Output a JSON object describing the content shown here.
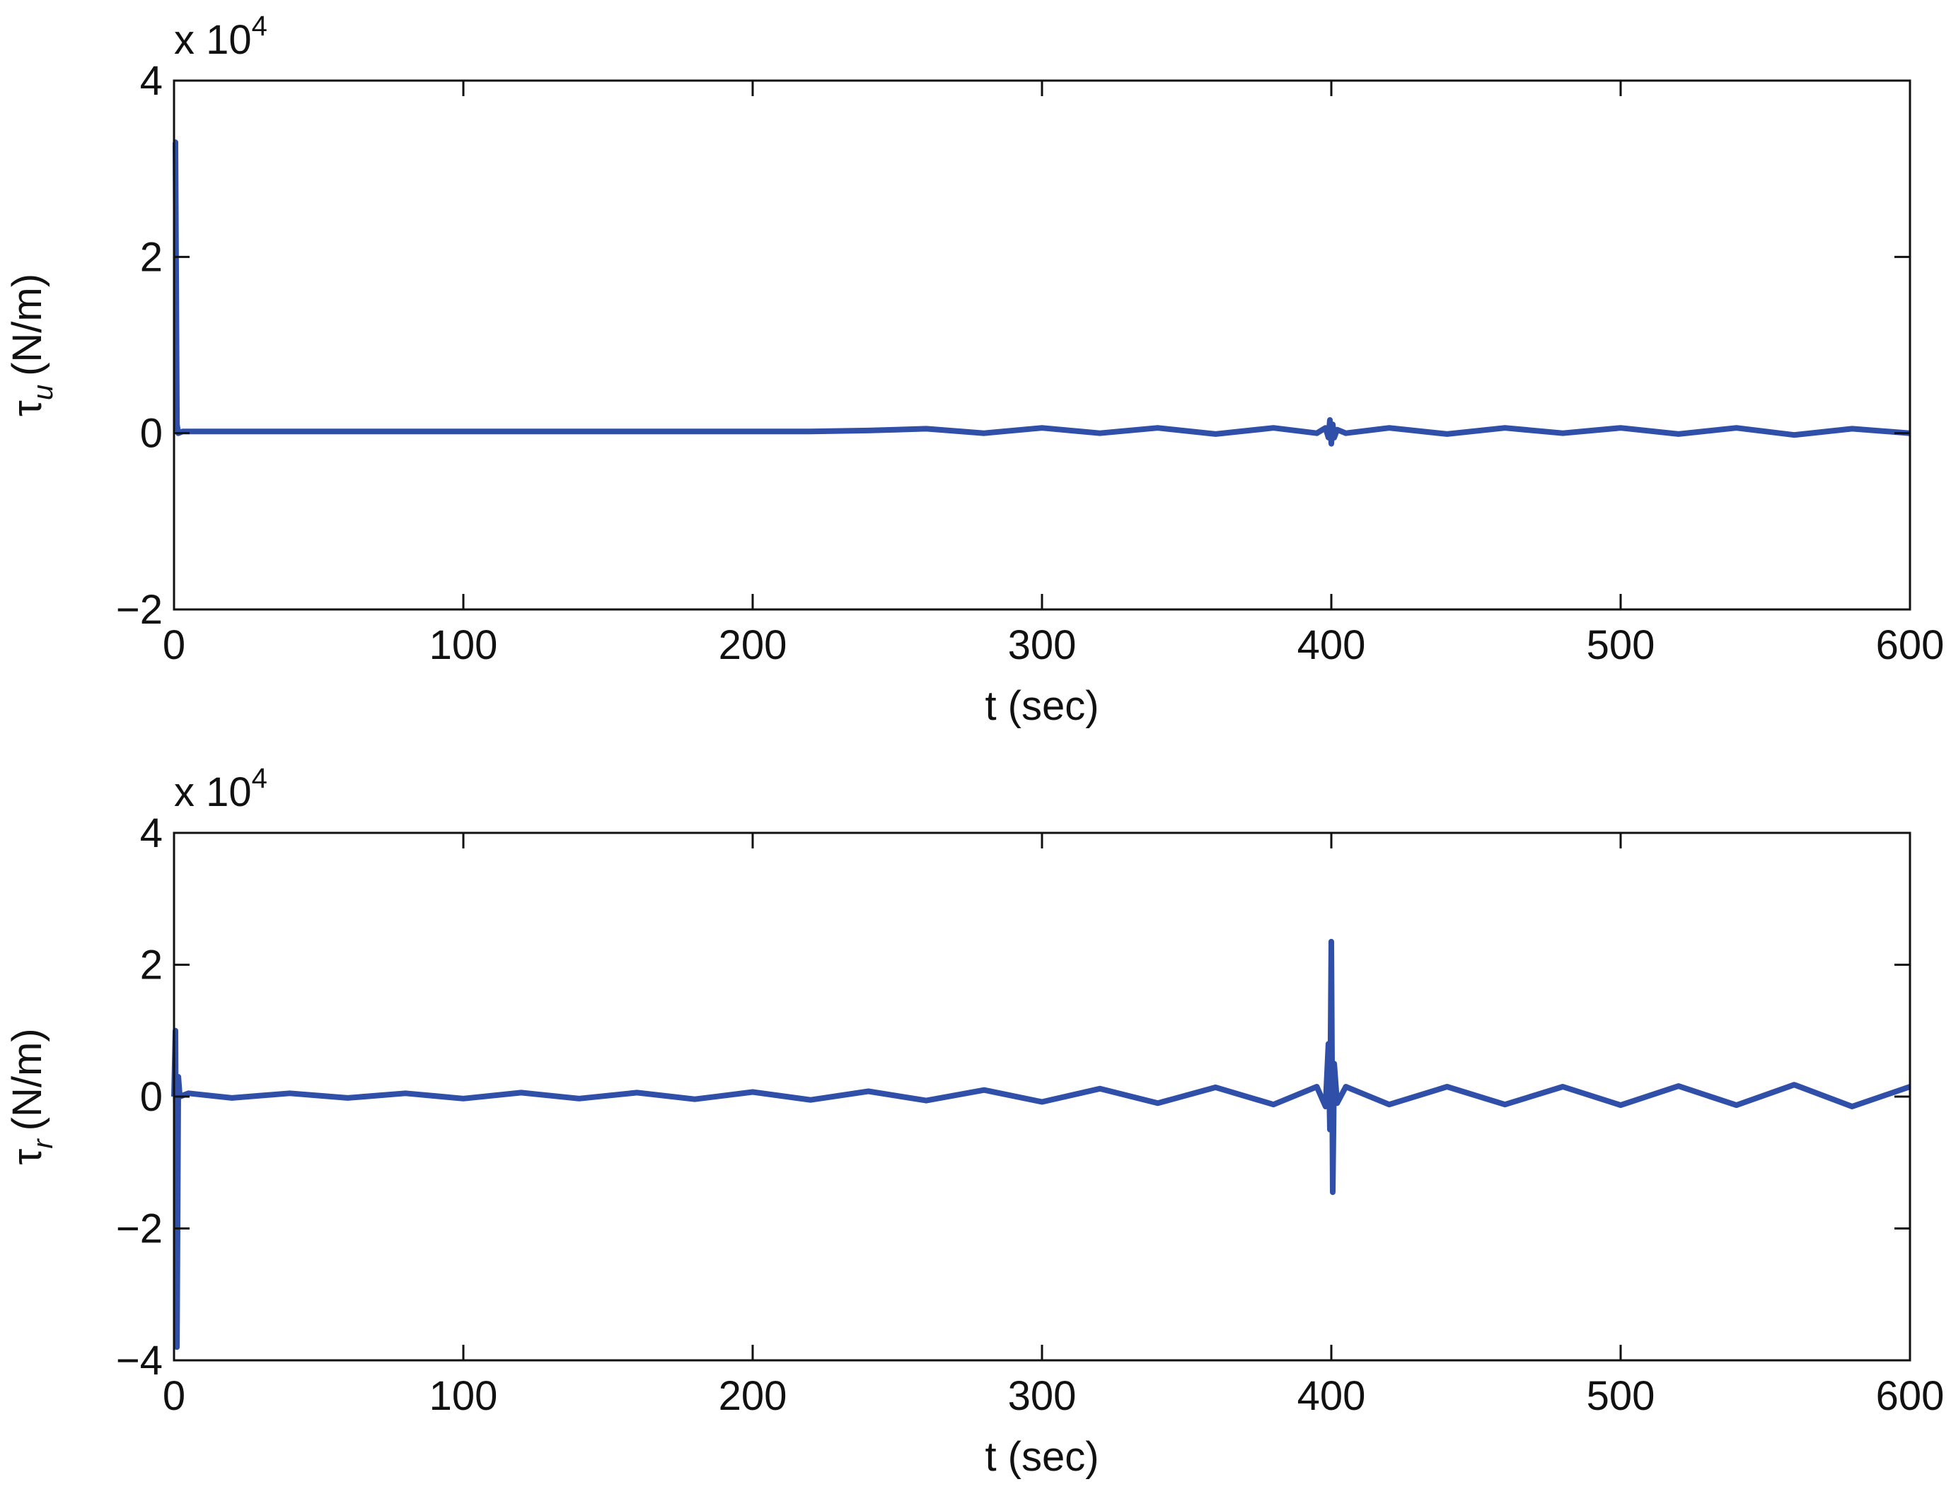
{
  "chart_data": [
    {
      "type": "line",
      "xlabel": "t (sec)",
      "ylabel": {
        "symbol": "τ",
        "subscript": "u",
        "unit": "(N/m)"
      },
      "y_multiplier": {
        "base": "x 10",
        "exponent": "4"
      },
      "x": [
        0,
        0.5,
        1,
        1.5,
        3,
        20,
        40,
        60,
        80,
        100,
        120,
        140,
        160,
        180,
        200,
        220,
        240,
        260,
        280,
        300,
        320,
        340,
        360,
        380,
        395,
        398,
        399,
        399.5,
        400,
        400.5,
        401,
        402,
        405,
        420,
        440,
        460,
        480,
        500,
        520,
        540,
        560,
        580,
        600
      ],
      "series": [
        {
          "color": "#2f4fa8",
          "values": [
            3.3,
            3.3,
            0.1,
            0.0,
            0.02,
            0.02,
            0.02,
            0.02,
            0.02,
            0.02,
            0.02,
            0.02,
            0.02,
            0.02,
            0.02,
            0.02,
            0.03,
            0.05,
            0.0,
            0.06,
            0.0,
            0.06,
            -0.01,
            0.06,
            0.0,
            0.06,
            -0.05,
            0.15,
            -0.12,
            0.1,
            -0.05,
            0.04,
            0.0,
            0.06,
            -0.01,
            0.06,
            0.0,
            0.06,
            -0.01,
            0.06,
            -0.02,
            0.05,
            0.0
          ]
        }
      ],
      "xlim": [
        0,
        600
      ],
      "xticks": [
        0,
        100,
        200,
        300,
        400,
        500,
        600
      ],
      "ylim": [
        -2,
        4
      ],
      "yticks": [
        {
          "value": -2,
          "label": "−2"
        },
        0,
        2,
        4
      ]
    },
    {
      "type": "line",
      "xlabel": "t (sec)",
      "ylabel": {
        "symbol": "τ",
        "subscript": "r",
        "unit": "(N/m)"
      },
      "y_multiplier": {
        "base": "x 10",
        "exponent": "4"
      },
      "x": [
        0,
        0.5,
        1,
        1.5,
        2,
        5,
        20,
        40,
        60,
        80,
        100,
        120,
        140,
        160,
        180,
        200,
        220,
        240,
        260,
        280,
        300,
        320,
        340,
        360,
        380,
        395,
        398,
        399,
        399.5,
        400,
        400.5,
        401,
        402,
        405,
        420,
        440,
        460,
        480,
        500,
        520,
        540,
        560,
        580,
        600
      ],
      "series": [
        {
          "color": "#2f4fa8",
          "values": [
            0,
            1.0,
            -3.8,
            0.3,
            0.0,
            0.05,
            -0.02,
            0.05,
            -0.02,
            0.05,
            -0.03,
            0.06,
            -0.03,
            0.06,
            -0.04,
            0.07,
            -0.05,
            0.08,
            -0.06,
            0.1,
            -0.08,
            0.12,
            -0.1,
            0.14,
            -0.12,
            0.15,
            -0.15,
            0.8,
            -0.5,
            2.35,
            -1.45,
            0.5,
            -0.1,
            0.15,
            -0.12,
            0.15,
            -0.12,
            0.15,
            -0.13,
            0.16,
            -0.13,
            0.18,
            -0.15,
            0.15
          ]
        }
      ],
      "xlim": [
        0,
        600
      ],
      "xticks": [
        0,
        100,
        200,
        300,
        400,
        500,
        600
      ],
      "ylim": [
        -4,
        4
      ],
      "yticks": [
        {
          "value": -4,
          "label": "−4"
        },
        {
          "value": -2,
          "label": "−2"
        },
        0,
        2,
        4
      ]
    }
  ]
}
